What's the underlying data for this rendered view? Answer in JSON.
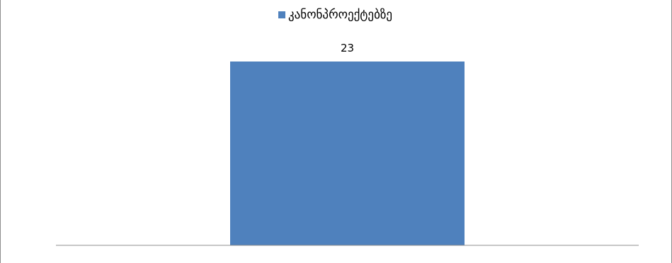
{
  "chart_data": {
    "type": "bar",
    "categories": [
      ""
    ],
    "series": [
      {
        "name": "კანონპროექტებზე",
        "values": [
          23
        ],
        "color": "#4f81bd"
      }
    ],
    "data_labels": [
      "23"
    ],
    "title": "",
    "xlabel": "",
    "ylabel": "",
    "ylim": [
      0,
      23
    ],
    "legend": "top-center",
    "grid": false,
    "axis_color": "#8c8c8c"
  }
}
